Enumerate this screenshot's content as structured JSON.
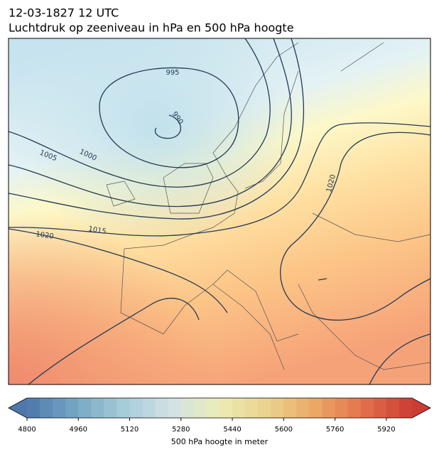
{
  "title": "12-03-1827 12 UTC",
  "subtitle": "Luchtdruk op zeeniveau in hPa en 500 hPa hoogte",
  "contour_labels": [
    995,
    990,
    1005,
    1000,
    1015,
    1020,
    1020
  ],
  "colorbar": {
    "label": "500 hPa hoogte in meter",
    "lim": [
      4800,
      6000
    ],
    "ticks": [
      4800,
      4960,
      5120,
      5280,
      5440,
      5600,
      5760,
      5920
    ]
  }
}
